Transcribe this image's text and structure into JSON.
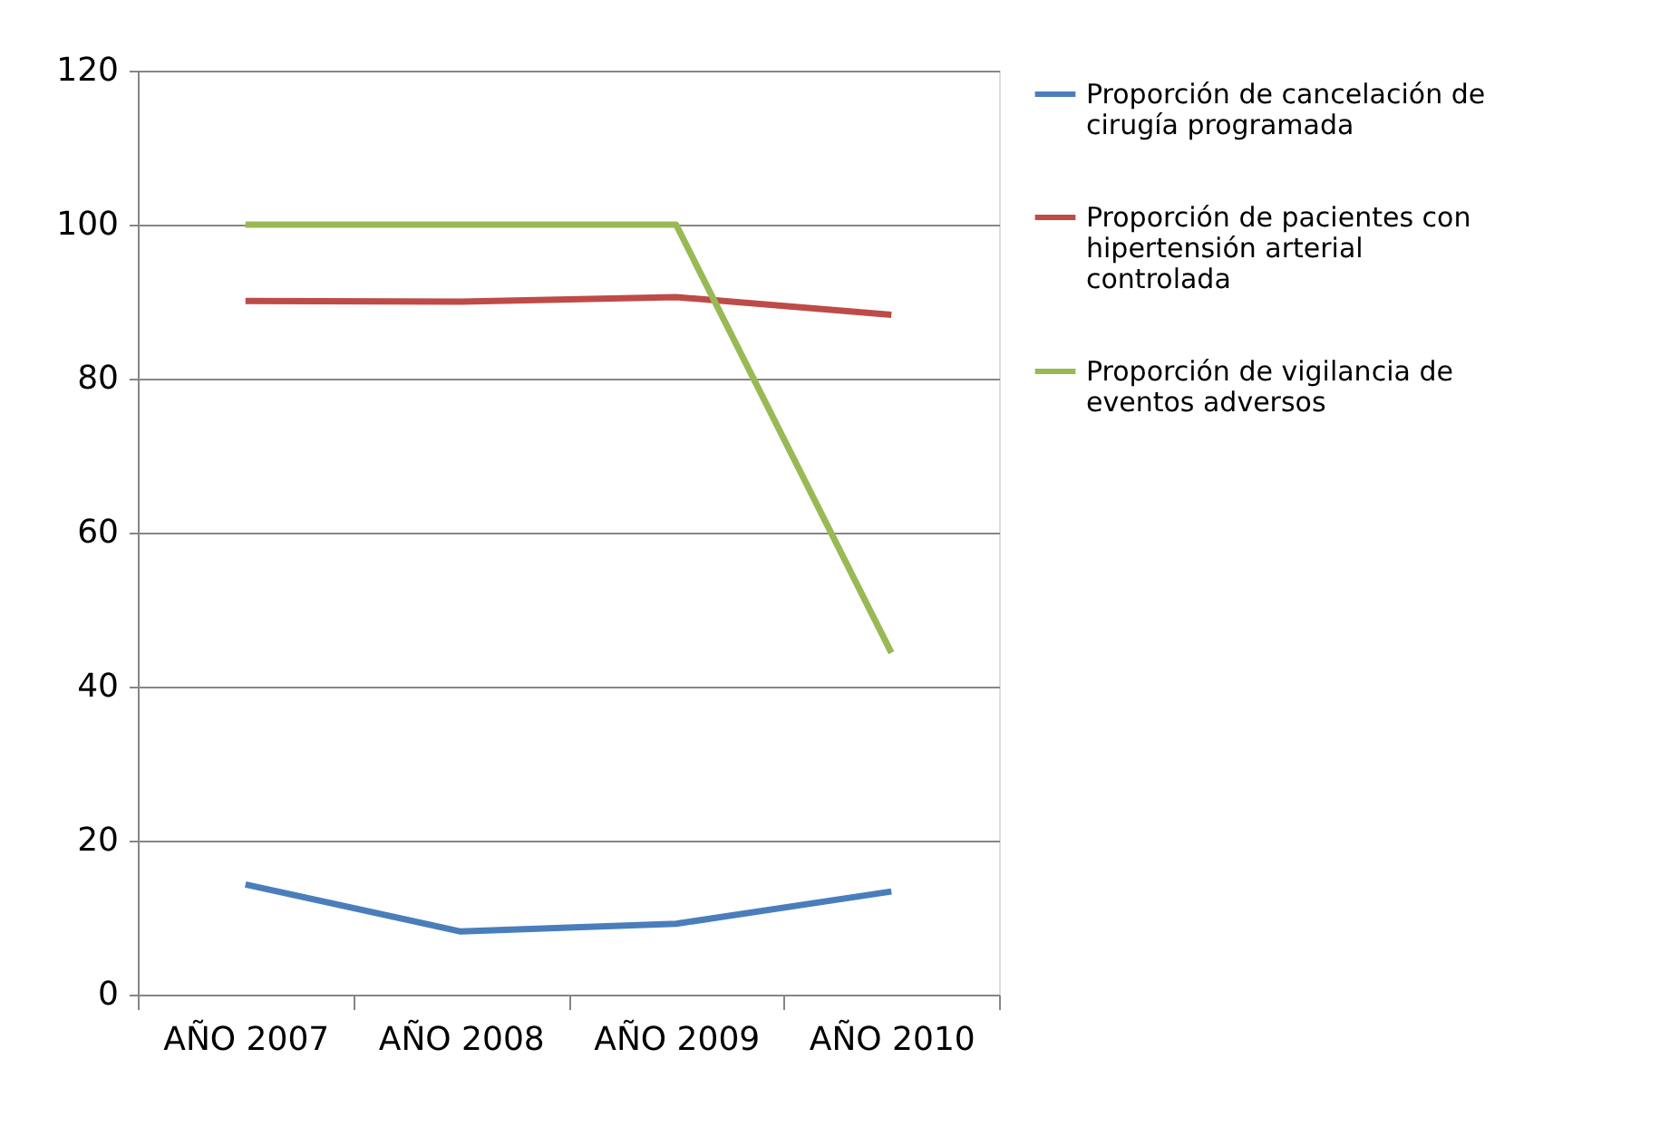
{
  "chart_data": {
    "type": "line",
    "categories": [
      "AÑO 2007",
      "AÑO 2008",
      "AÑO 2009",
      "AÑO 2010"
    ],
    "series": [
      {
        "name": "Proporción de cancelación de cirugía programada",
        "color": "#4a7ebb",
        "values": [
          14.3,
          8.2,
          9.2,
          13.4
        ]
      },
      {
        "name": "Proporción de pacientes con hipertensión arterial controlada",
        "color": "#be4b48",
        "values": [
          90.1,
          90,
          90.6,
          88.3
        ]
      },
      {
        "name": "Proporción de vigilancia de eventos adversos",
        "color": "#98b954",
        "values": [
          100,
          100,
          100,
          44.4
        ]
      }
    ],
    "ylim": [
      0,
      120
    ],
    "yticks": [
      0,
      20,
      40,
      60,
      80,
      100,
      120
    ],
    "grid": "y",
    "legend": "right",
    "marker": "none",
    "line_style": "solid"
  }
}
